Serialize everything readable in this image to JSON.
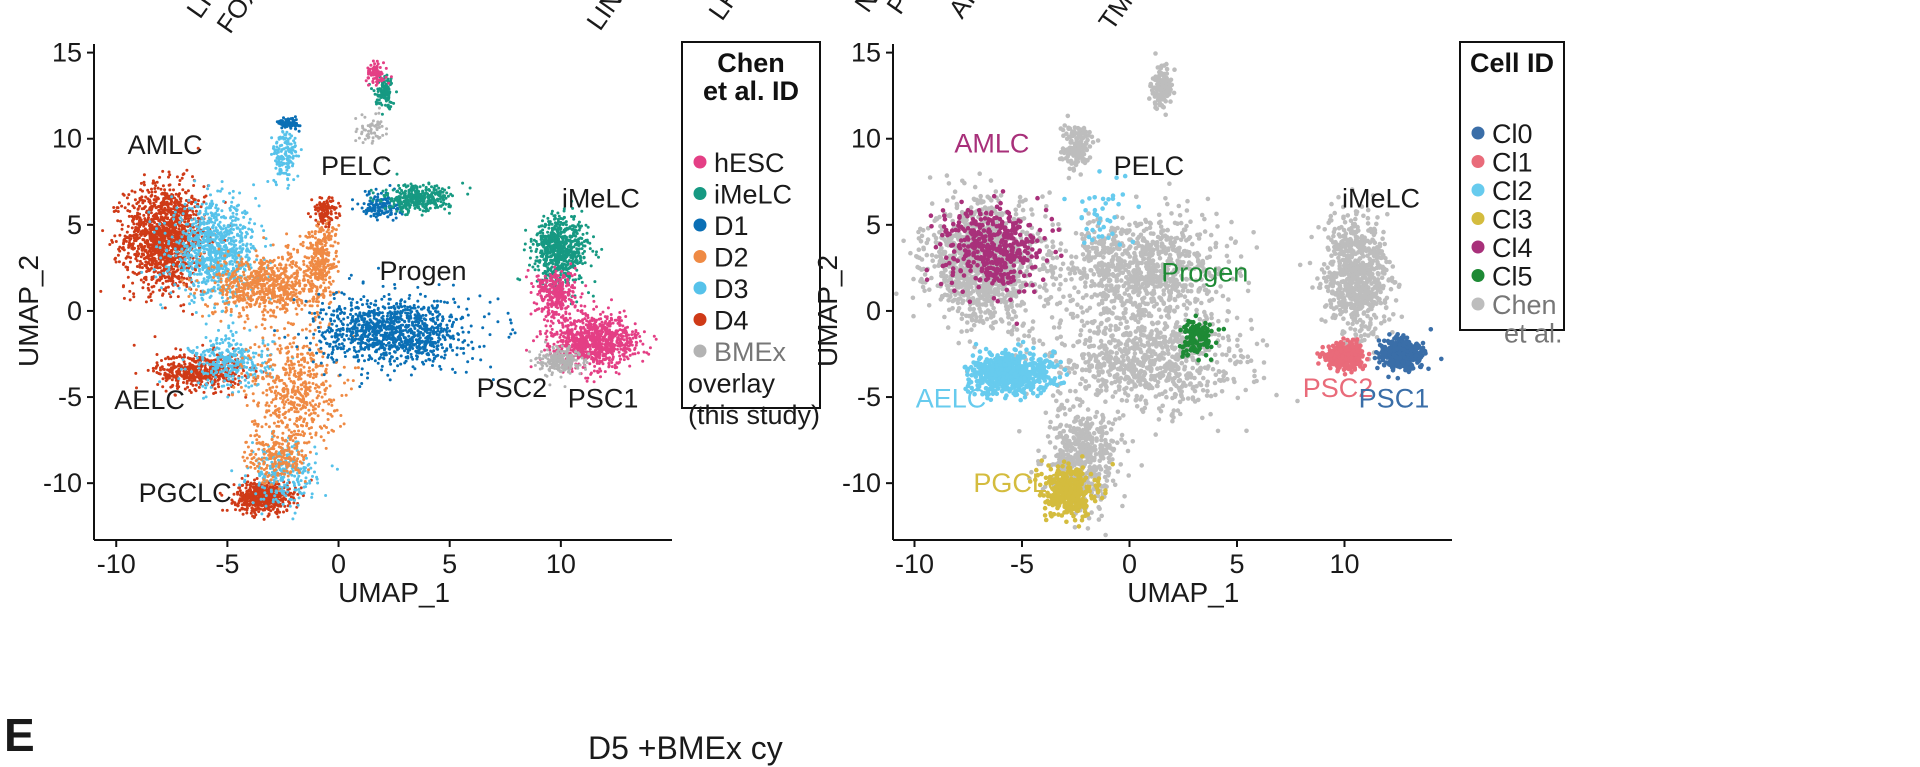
{
  "panel_letter": "E",
  "bottom_caption": "D5 +BMEx cy",
  "top_cut_labels": [
    "LI",
    "FOX",
    "LINC",
    "LR",
    "N",
    "P",
    "AI",
    "TMP"
  ],
  "chart_data": [
    {
      "type": "scatter",
      "subtype": "umap",
      "xlabel": "UMAP_1",
      "ylabel": "UMAP_2",
      "xlim": [
        -11,
        15
      ],
      "ylim": [
        -13.3,
        15.5
      ],
      "xticks": [
        -10,
        -5,
        0,
        5,
        10
      ],
      "xtick_labels": [
        "-10",
        "-5",
        "0",
        "5",
        "10"
      ],
      "yticks": [
        -10,
        -5,
        0,
        5,
        10,
        15
      ],
      "ytick_labels": [
        "-10",
        "-5",
        "0",
        "5",
        "10",
        "15"
      ],
      "grid": false,
      "legend_position": "right",
      "legend": {
        "title": "Chen et al. ID",
        "entries": [
          {
            "label": "hESC",
            "color": "#e43f85"
          },
          {
            "label": "iMeLC",
            "color": "#169982"
          },
          {
            "label": "D1",
            "color": "#0a6fb5"
          },
          {
            "label": "D2",
            "color": "#ef8a44"
          },
          {
            "label": "D3",
            "color": "#56c2ea"
          },
          {
            "label": "D4",
            "color": "#cf3a17"
          },
          {
            "label": "BMEx overlay (this study)",
            "color": "#b3b3b3"
          }
        ]
      },
      "cluster_labels": [
        {
          "text": "AMLC",
          "x": -7.8,
          "y": 9.1,
          "color": "#1a1a1a"
        },
        {
          "text": "PELC",
          "x": 0.8,
          "y": 7.9,
          "color": "#1a1a1a"
        },
        {
          "text": "iMeLC",
          "x": 11.8,
          "y": 6.0,
          "color": "#1a1a1a"
        },
        {
          "text": "Progen",
          "x": 3.8,
          "y": 1.8,
          "color": "#1a1a1a"
        },
        {
          "text": "AELC",
          "x": -8.5,
          "y": -5.7,
          "color": "#1a1a1a"
        },
        {
          "text": "PSC2",
          "x": 7.8,
          "y": -5.0,
          "color": "#1a1a1a"
        },
        {
          "text": "PSC1",
          "x": 11.9,
          "y": -5.6,
          "color": "#1a1a1a"
        },
        {
          "text": "PGCLC",
          "x": -6.9,
          "y": -11.1,
          "color": "#1a1a1a"
        }
      ],
      "point_groups": [
        {
          "label": "D4",
          "color": "#cf3a17",
          "n": 1400,
          "cx": -7.8,
          "cy": 4.3,
          "sx": 1.2,
          "sy": 2.0
        },
        {
          "label": "D4",
          "color": "#cf3a17",
          "n": 500,
          "cx": -6.2,
          "cy": -3.5,
          "sx": 1.3,
          "sy": 0.7
        },
        {
          "label": "D4",
          "color": "#cf3a17",
          "n": 600,
          "cx": -3.4,
          "cy": -10.8,
          "sx": 0.8,
          "sy": 0.6
        },
        {
          "label": "D4",
          "color": "#cf3a17",
          "n": 120,
          "cx": -0.6,
          "cy": 5.8,
          "sx": 0.4,
          "sy": 0.5
        },
        {
          "label": "D3",
          "color": "#56c2ea",
          "n": 900,
          "cx": -5.6,
          "cy": 3.5,
          "sx": 1.3,
          "sy": 1.8
        },
        {
          "label": "D3",
          "color": "#56c2ea",
          "n": 300,
          "cx": -4.8,
          "cy": -3.0,
          "sx": 1.2,
          "sy": 1.0
        },
        {
          "label": "D3",
          "color": "#56c2ea",
          "n": 250,
          "cx": -2.5,
          "cy": -9.5,
          "sx": 1.0,
          "sy": 1.2
        },
        {
          "label": "D3",
          "color": "#56c2ea",
          "n": 150,
          "cx": -2.4,
          "cy": 9.0,
          "sx": 0.4,
          "sy": 1.0
        },
        {
          "label": "D2",
          "color": "#ef8a44",
          "n": 700,
          "cx": -3.2,
          "cy": 1.5,
          "sx": 1.6,
          "sy": 1.2
        },
        {
          "label": "D2",
          "color": "#ef8a44",
          "n": 500,
          "cx": -2.0,
          "cy": -4.5,
          "sx": 1.3,
          "sy": 2.2
        },
        {
          "label": "D2",
          "color": "#ef8a44",
          "n": 300,
          "cx": -0.8,
          "cy": 3.0,
          "sx": 0.5,
          "sy": 1.5
        },
        {
          "label": "D2",
          "color": "#ef8a44",
          "n": 200,
          "cx": -2.8,
          "cy": -8.5,
          "sx": 0.9,
          "sy": 1.0
        },
        {
          "label": "D1",
          "color": "#0a6fb5",
          "n": 1100,
          "cx": 2.5,
          "cy": -1.2,
          "sx": 2.2,
          "sy": 1.3
        },
        {
          "label": "D1",
          "color": "#0a6fb5",
          "n": 150,
          "cx": 1.9,
          "cy": 6.1,
          "sx": 0.6,
          "sy": 0.5
        },
        {
          "label": "D1",
          "color": "#0a6fb5",
          "n": 80,
          "cx": -2.2,
          "cy": 10.9,
          "sx": 0.3,
          "sy": 0.2
        },
        {
          "label": "iMeLC",
          "color": "#169982",
          "n": 700,
          "cx": 10.0,
          "cy": 3.5,
          "sx": 0.8,
          "sy": 1.4
        },
        {
          "label": "iMeLC",
          "color": "#169982",
          "n": 350,
          "cx": 3.5,
          "cy": 6.5,
          "sx": 1.0,
          "sy": 0.5
        },
        {
          "label": "iMeLC",
          "color": "#169982",
          "n": 120,
          "cx": 2.1,
          "cy": 12.7,
          "sx": 0.3,
          "sy": 0.6
        },
        {
          "label": "hESC",
          "color": "#e43f85",
          "n": 900,
          "cx": 11.5,
          "cy": -1.8,
          "sx": 1.3,
          "sy": 1.0
        },
        {
          "label": "hESC",
          "color": "#e43f85",
          "n": 300,
          "cx": 9.8,
          "cy": 1.0,
          "sx": 0.6,
          "sy": 0.9
        },
        {
          "label": "hESC",
          "color": "#e43f85",
          "n": 80,
          "cx": 1.7,
          "cy": 13.8,
          "sx": 0.3,
          "sy": 0.4
        },
        {
          "label": "BMEx overlay (this study)",
          "color": "#b3b3b3",
          "n": 250,
          "cx": 10.0,
          "cy": -2.9,
          "sx": 0.6,
          "sy": 0.5
        },
        {
          "label": "BMEx overlay (this study)",
          "color": "#b3b3b3",
          "n": 60,
          "cx": 1.5,
          "cy": 10.5,
          "sx": 0.5,
          "sy": 0.6
        }
      ]
    },
    {
      "type": "scatter",
      "subtype": "umap",
      "xlabel": "UMAP_1",
      "ylabel": "UMAP_2",
      "xlim": [
        -11,
        15
      ],
      "ylim": [
        -13.3,
        15.5
      ],
      "xticks": [
        -10,
        -5,
        0,
        5,
        10
      ],
      "xtick_labels": [
        "-10",
        "-5",
        "0",
        "5",
        "10"
      ],
      "yticks": [
        -10,
        -5,
        0,
        5,
        10,
        15
      ],
      "ytick_labels": [
        "-10",
        "-5",
        "0",
        "5",
        "10",
        "15"
      ],
      "grid": false,
      "legend_position": "top-right",
      "legend": {
        "title": "Cell ID",
        "entries": [
          {
            "label": "Cl0",
            "color": "#3a6ea8"
          },
          {
            "label": "Cl1",
            "color": "#e96b7a"
          },
          {
            "label": "Cl2",
            "color": "#67cbee"
          },
          {
            "label": "Cl3",
            "color": "#d4bc3e"
          },
          {
            "label": "Cl4",
            "color": "#a8307a"
          },
          {
            "label": "Cl5",
            "color": "#1e8a35"
          },
          {
            "label": "Chen et al.",
            "color": "#bdbdbd"
          }
        ]
      },
      "cluster_labels": [
        {
          "text": "AMLC",
          "x": -6.4,
          "y": 9.2,
          "color": "#a8307a"
        },
        {
          "text": "PELC",
          "x": 0.9,
          "y": 7.9,
          "color": "#1a1a1a"
        },
        {
          "text": "iMeLC",
          "x": 11.7,
          "y": 6.0,
          "color": "#1a1a1a"
        },
        {
          "text": "Progen",
          "x": 3.5,
          "y": 1.7,
          "color": "#1e8a35"
        },
        {
          "text": "AELC",
          "x": -8.3,
          "y": -5.6,
          "color": "#67cbee"
        },
        {
          "text": "PSC2",
          "x": 9.7,
          "y": -5.0,
          "color": "#e96b7a"
        },
        {
          "text": "PSC1",
          "x": 12.3,
          "y": -5.6,
          "color": "#3a6ea8"
        },
        {
          "text": "PGCLC",
          "x": -5.1,
          "y": -10.5,
          "color": "#d4bc3e"
        }
      ],
      "point_groups": [
        {
          "label": "Chen et al.",
          "color": "#bdbdbd",
          "n": 1100,
          "cx": -6.8,
          "cy": 2.8,
          "sx": 1.7,
          "sy": 2.3
        },
        {
          "label": "Chen et al.",
          "color": "#bdbdbd",
          "n": 900,
          "cx": 0.5,
          "cy": 2.5,
          "sx": 2.6,
          "sy": 2.0
        },
        {
          "label": "Chen et al.",
          "color": "#bdbdbd",
          "n": 800,
          "cx": 0.8,
          "cy": -3.0,
          "sx": 3.0,
          "sy": 2.0
        },
        {
          "label": "Chen et al.",
          "color": "#bdbdbd",
          "n": 500,
          "cx": -2.2,
          "cy": -8.5,
          "sx": 1.1,
          "sy": 2.0
        },
        {
          "label": "Chen et al.",
          "color": "#bdbdbd",
          "n": 700,
          "cx": 10.6,
          "cy": 2.0,
          "sx": 1.0,
          "sy": 2.2
        },
        {
          "label": "Chen et al.",
          "color": "#bdbdbd",
          "n": 150,
          "cx": -2.5,
          "cy": 9.5,
          "sx": 0.5,
          "sy": 0.8
        },
        {
          "label": "Chen et al.",
          "color": "#bdbdbd",
          "n": 150,
          "cx": 1.5,
          "cy": 13.0,
          "sx": 0.3,
          "sy": 0.8
        },
        {
          "label": "Cl4",
          "color": "#a8307a",
          "n": 420,
          "cx": -6.4,
          "cy": 3.6,
          "sx": 1.5,
          "sy": 1.6
        },
        {
          "label": "Cl2",
          "color": "#67cbee",
          "n": 600,
          "cx": -5.5,
          "cy": -3.6,
          "sx": 1.3,
          "sy": 0.8
        },
        {
          "label": "Cl2",
          "color": "#67cbee",
          "n": 40,
          "cx": -1.2,
          "cy": 5.5,
          "sx": 1.0,
          "sy": 1.5
        },
        {
          "label": "Cl3",
          "color": "#d4bc3e",
          "n": 380,
          "cx": -2.8,
          "cy": -10.5,
          "sx": 0.8,
          "sy": 0.9
        },
        {
          "label": "Cl5",
          "color": "#1e8a35",
          "n": 110,
          "cx": 3.1,
          "cy": -1.5,
          "sx": 0.5,
          "sy": 0.7
        },
        {
          "label": "Cl1",
          "color": "#e96b7a",
          "n": 380,
          "cx": 10.0,
          "cy": -2.6,
          "sx": 0.6,
          "sy": 0.5
        },
        {
          "label": "Cl0",
          "color": "#3a6ea8",
          "n": 450,
          "cx": 12.6,
          "cy": -2.5,
          "sx": 0.6,
          "sy": 0.6
        }
      ]
    }
  ]
}
